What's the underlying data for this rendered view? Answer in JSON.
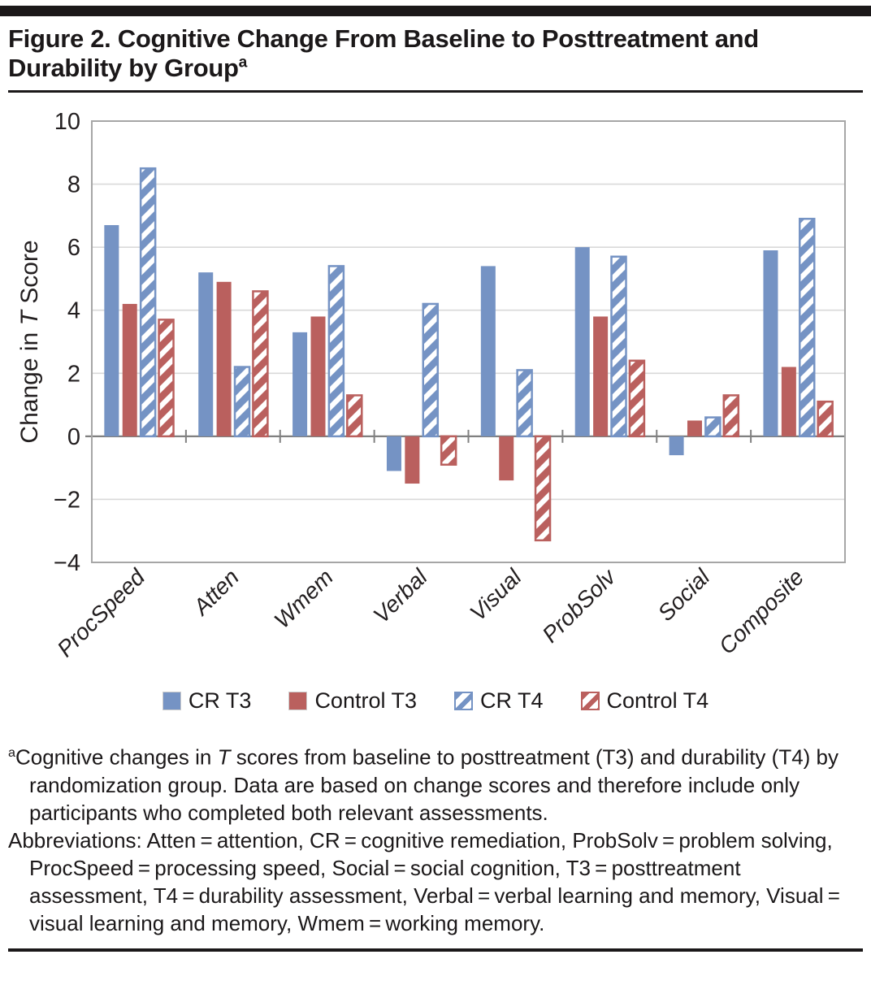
{
  "title": {
    "text": "Figure 2. Cognitive Change From Baseline to Posttreatment and Durability by Group",
    "superscript": "a"
  },
  "chart_data": {
    "type": "bar",
    "categories": [
      "ProcSpeed",
      "Atten",
      "Wmem",
      "Verbal",
      "Visual",
      "ProbSolv",
      "Social",
      "Composite"
    ],
    "series": [
      {
        "name": "CR T3",
        "color": "#7593C4",
        "style": "solid",
        "values": [
          6.7,
          5.2,
          3.3,
          -1.1,
          5.4,
          6.0,
          -0.6,
          5.9
        ]
      },
      {
        "name": "Control T3",
        "color": "#BA605E",
        "style": "solid",
        "values": [
          4.2,
          4.9,
          3.8,
          -1.5,
          -1.4,
          3.8,
          0.5,
          2.2
        ]
      },
      {
        "name": "CR T4",
        "color": "#7593C4",
        "style": "hatched",
        "values": [
          8.5,
          2.2,
          5.4,
          4.2,
          2.1,
          5.7,
          0.6,
          6.9
        ]
      },
      {
        "name": "Control T4",
        "color": "#BA605E",
        "style": "hatched",
        "values": [
          3.7,
          4.6,
          1.3,
          -0.9,
          -3.3,
          2.4,
          1.3,
          1.1
        ]
      }
    ],
    "ylabel": {
      "pre": "Change in ",
      "italic": "T",
      "post": " Score"
    },
    "ylim": [
      -4,
      10
    ],
    "ytick_step": 2,
    "grid": true,
    "legend_position": "bottom",
    "colors": {
      "gridline": "#D9D9D9",
      "plot_border": "#A6A6A6",
      "zero_axis": "#808080",
      "text": "#231f20"
    }
  },
  "footnote": {
    "sup": "a",
    "p1_pre": "Cognitive changes in ",
    "p1_italic": "T",
    "p1_post": " scores from baseline to posttreatment (T3) and durability (T4) by randomization group. Data are based on change scores and therefore include only participants who completed both relevant assessments.",
    "p2": "Abbreviations: Atten = attention, CR = cognitive remediation, ProbSolv = problem solving, ProcSpeed = processing speed, Social = social cognition, T3 = posttreatment assessment, T4 = durability assessment, Verbal = verbal learning and memory, Visual = visual learning and memory, Wmem = working memory."
  }
}
